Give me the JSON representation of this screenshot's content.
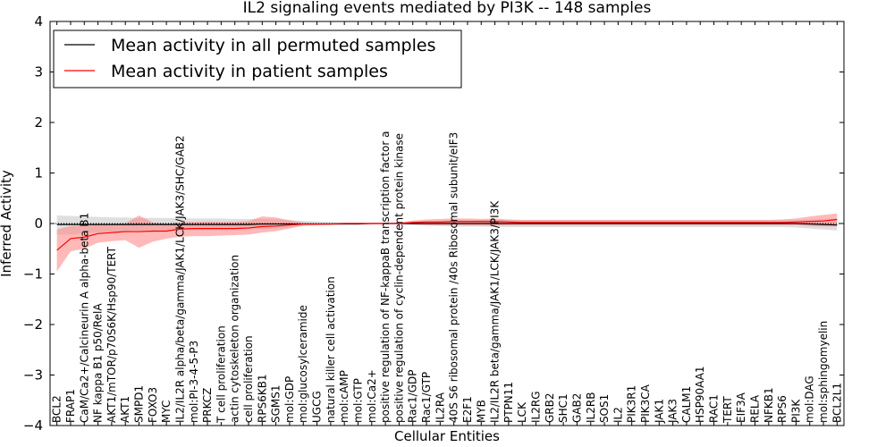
{
  "chart_data": {
    "type": "line",
    "title": "IL2 signaling events mediated by PI3K -- 148 samples",
    "xlabel": "Cellular Entities",
    "ylabel": "Inferred Activity",
    "ylim": [
      -4,
      4
    ],
    "yticks": [
      "4",
      "3",
      "2",
      "1",
      "0",
      "−1",
      "−2",
      "−3",
      "−4"
    ],
    "yticks_values": [
      4,
      3,
      2,
      1,
      0,
      -1,
      -2,
      -3,
      -4
    ],
    "categories": [
      "BCL2",
      "FRAP1",
      "CaM/Ca2+/Calcineurin A alpha-beta B1",
      "NF kappa B1 p50/RelA",
      "AKT1/mTOR/p70S6K/Hsp90/TERT",
      "AKT1",
      "SMPD1",
      "FOXO3",
      "MYC",
      "IL2/IL2R alpha/beta/gamma/JAK1/LCK/JAK3/SHC/GAB2",
      "mol:PI-3-4-5-P3",
      "PRKCZ",
      "T cell proliferation",
      "actin cytoskeleton organization",
      "cell proliferation",
      "RPS6KB1",
      "SGMS1",
      "mol:GDP",
      "mol:glucosylceramide",
      "UGCG",
      "natural killer cell activation",
      "mol:cAMP",
      "mol:GTP",
      "mol:Ca2+",
      "positive regulation of NF-kappaB transcription factor a",
      "positive regulation of cyclin-dependent protein kinase",
      "Rac1/GDP",
      "Rac1/GTP",
      "IL2RA",
      "40S S6 ribosomal protein /40s Ribosomal subunit/eIF3",
      "E2F1",
      "MYB",
      "IL2/IL2R beta/gamma/JAK1/LCK/JAK3/PI3K",
      "PTPN11",
      "LCK",
      "IL2RG",
      "GRB2",
      "SHC1",
      "GAB2",
      "IL2RB",
      "SOS1",
      "IL2",
      "PIK3R1",
      "PIK3CA",
      "JAK1",
      "JAK3",
      "CALM1",
      "HSP90AA1",
      "RAC1",
      "TERT",
      "EIF3A",
      "RELA",
      "NFKB1",
      "RPS6",
      "PI3K",
      "mol:DAG",
      "mol:sphingomyelin",
      "BCL2L1"
    ],
    "series": [
      {
        "name": "Mean activity in all permuted samples",
        "color": "#000000",
        "values": [
          -0.02,
          -0.02,
          -0.02,
          -0.02,
          -0.02,
          -0.02,
          -0.02,
          -0.02,
          -0.02,
          -0.02,
          -0.02,
          -0.02,
          -0.02,
          -0.02,
          -0.02,
          -0.01,
          -0.01,
          -0.01,
          -0.01,
          -0.01,
          -0.01,
          -0.01,
          -0.01,
          0.0,
          0.0,
          0.0,
          0.0,
          0.0,
          0.0,
          0.0,
          0.0,
          0.0,
          0.0,
          0.0,
          0.0,
          0.0,
          0.0,
          0.0,
          0.0,
          0.0,
          0.0,
          0.0,
          0.0,
          0.0,
          0.0,
          0.0,
          0.0,
          0.0,
          0.0,
          0.0,
          0.0,
          0.0,
          0.0,
          0.0,
          0.0,
          -0.01,
          -0.02,
          -0.03
        ],
        "lower": [
          -0.22,
          -0.22,
          -0.2,
          -0.18,
          -0.16,
          -0.15,
          -0.14,
          -0.14,
          -0.13,
          -0.13,
          -0.12,
          -0.12,
          -0.12,
          -0.11,
          -0.11,
          -0.11,
          -0.1,
          -0.08,
          -0.05,
          -0.04,
          -0.03,
          -0.02,
          -0.02,
          -0.01,
          -0.01,
          -0.02,
          -0.03,
          -0.04,
          -0.05,
          -0.06,
          -0.06,
          -0.06,
          -0.07,
          -0.07,
          -0.07,
          -0.07,
          -0.07,
          -0.07,
          -0.07,
          -0.07,
          -0.07,
          -0.07,
          -0.07,
          -0.07,
          -0.07,
          -0.07,
          -0.07,
          -0.07,
          -0.07,
          -0.07,
          -0.07,
          -0.07,
          -0.07,
          -0.07,
          -0.08,
          -0.1,
          -0.12,
          -0.14
        ],
        "upper": [
          0.16,
          0.15,
          0.14,
          0.13,
          0.12,
          0.12,
          0.11,
          0.11,
          0.11,
          0.1,
          0.1,
          0.1,
          0.1,
          0.09,
          0.09,
          0.09,
          0.08,
          0.07,
          0.05,
          0.04,
          0.03,
          0.02,
          0.02,
          0.01,
          0.01,
          0.02,
          0.03,
          0.04,
          0.05,
          0.06,
          0.06,
          0.07,
          0.07,
          0.07,
          0.07,
          0.07,
          0.07,
          0.07,
          0.07,
          0.07,
          0.07,
          0.07,
          0.07,
          0.07,
          0.07,
          0.07,
          0.07,
          0.07,
          0.07,
          0.07,
          0.07,
          0.07,
          0.07,
          0.07,
          0.07,
          0.08,
          0.09,
          0.1
        ]
      },
      {
        "name": "Mean activity in patient samples",
        "color": "#ff0000",
        "values": [
          -0.53,
          -0.3,
          -0.27,
          -0.2,
          -0.18,
          -0.16,
          -0.16,
          -0.15,
          -0.15,
          -0.11,
          -0.1,
          -0.1,
          -0.1,
          -0.1,
          -0.09,
          -0.06,
          -0.05,
          -0.03,
          -0.01,
          -0.01,
          -0.01,
          0.0,
          0.0,
          0.0,
          0.0,
          0.0,
          0.02,
          0.03,
          0.03,
          0.04,
          0.04,
          0.04,
          0.04,
          0.03,
          0.02,
          0.02,
          0.02,
          0.02,
          0.02,
          0.02,
          0.02,
          0.02,
          0.02,
          0.02,
          0.02,
          0.02,
          0.02,
          0.02,
          0.02,
          0.02,
          0.02,
          0.02,
          0.02,
          0.02,
          0.03,
          0.04,
          0.05,
          0.08
        ],
        "lower": [
          -0.95,
          -0.55,
          -0.5,
          -0.38,
          -0.35,
          -0.33,
          -0.48,
          -0.36,
          -0.3,
          -0.26,
          -0.25,
          -0.25,
          -0.24,
          -0.23,
          -0.22,
          -0.18,
          -0.15,
          -0.1,
          -0.04,
          -0.03,
          -0.02,
          -0.01,
          -0.01,
          0.0,
          0.0,
          -0.01,
          -0.02,
          -0.03,
          -0.03,
          -0.03,
          -0.04,
          -0.04,
          -0.04,
          -0.03,
          -0.03,
          -0.03,
          -0.03,
          -0.03,
          -0.03,
          -0.03,
          -0.03,
          -0.03,
          -0.03,
          -0.03,
          -0.03,
          -0.03,
          -0.03,
          -0.03,
          -0.03,
          -0.03,
          -0.03,
          -0.03,
          -0.03,
          -0.03,
          -0.03,
          -0.05,
          -0.06,
          -0.06
        ],
        "upper": [
          -0.12,
          -0.05,
          -0.04,
          -0.02,
          -0.01,
          0.0,
          0.16,
          0.02,
          0.0,
          0.02,
          0.03,
          0.04,
          0.03,
          0.03,
          0.05,
          0.14,
          0.12,
          0.06,
          0.02,
          0.01,
          0.01,
          0.01,
          0.01,
          0.0,
          0.01,
          0.02,
          0.06,
          0.08,
          0.09,
          0.1,
          0.1,
          0.09,
          0.1,
          0.08,
          0.07,
          0.07,
          0.07,
          0.07,
          0.07,
          0.07,
          0.07,
          0.07,
          0.07,
          0.07,
          0.07,
          0.07,
          0.07,
          0.07,
          0.07,
          0.07,
          0.07,
          0.07,
          0.07,
          0.08,
          0.1,
          0.14,
          0.17,
          0.2
        ]
      }
    ],
    "legend": "top-left",
    "grid": false,
    "zero_line": true
  },
  "colors": {
    "permuted_band": "#bfbfbf",
    "patient_band": "#ff7f7f",
    "axis": "#000000"
  }
}
